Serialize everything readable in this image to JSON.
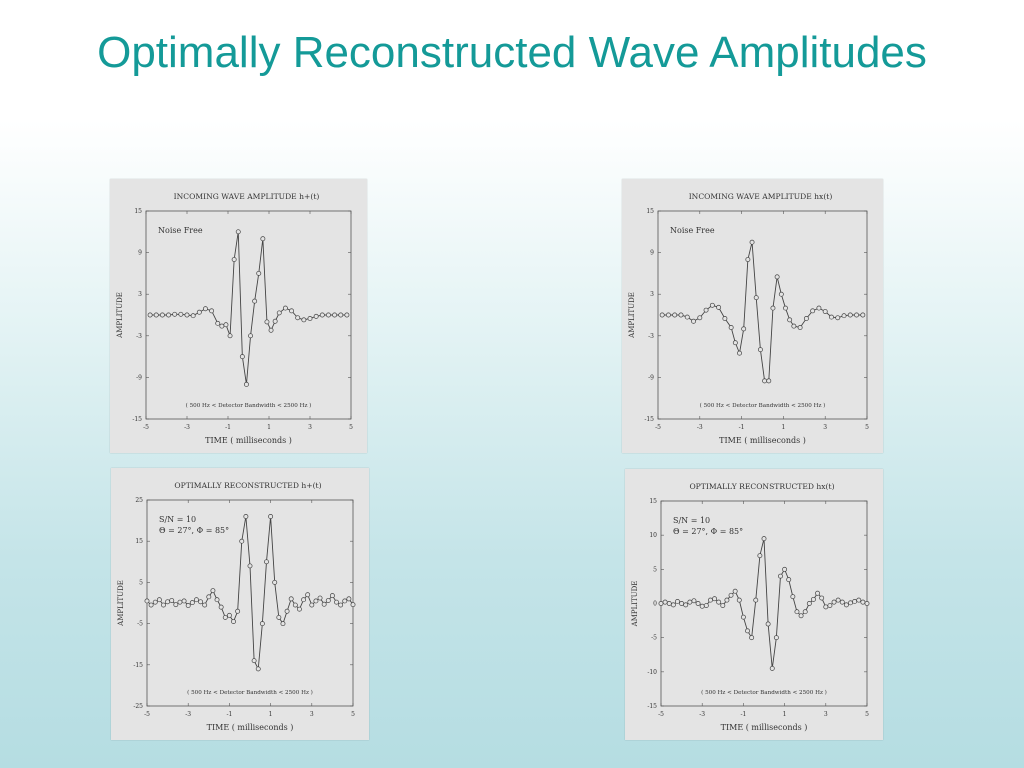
{
  "slide": {
    "title": "Optimally Reconstructed Wave Amplitudes"
  },
  "chart_data": [
    {
      "type": "line",
      "title": "INCOMING WAVE AMPLITUDE h+(t)",
      "annotation": "Noise Free",
      "note": "( 500 Hz < Detector Bandwidth < 2500 Hz )",
      "xlabel": "TIME ( milliseconds )",
      "ylabel": "AMPLITUDE",
      "xlim": [
        -5,
        5
      ],
      "ylim": [
        -15,
        15
      ],
      "xticks": [
        "-5",
        "-3",
        "-1",
        "1",
        "3",
        "5"
      ],
      "yticks": [
        "15",
        "9",
        "3",
        "-3",
        "-9",
        "-15"
      ],
      "grid": false,
      "x": [
        -4.8,
        -4.5,
        -4.2,
        -3.9,
        -3.6,
        -3.3,
        -3.0,
        -2.7,
        -2.4,
        -2.1,
        -1.8,
        -1.5,
        -1.3,
        -1.1,
        -0.9,
        -0.7,
        -0.5,
        -0.3,
        -0.1,
        0.1,
        0.3,
        0.5,
        0.7,
        0.9,
        1.1,
        1.3,
        1.5,
        1.8,
        2.1,
        2.4,
        2.7,
        3.0,
        3.3,
        3.6,
        3.9,
        4.2,
        4.5,
        4.8
      ],
      "values": [
        0,
        0,
        0,
        0,
        0.1,
        0.1,
        0,
        -0.1,
        0.4,
        0.9,
        0.6,
        -1.2,
        -1.6,
        -1.4,
        -3.0,
        8.0,
        12.0,
        -6.0,
        -10.0,
        -3.0,
        2.0,
        6.0,
        11.0,
        -1.0,
        -2.2,
        -0.9,
        0.3,
        1.0,
        0.6,
        -0.4,
        -0.7,
        -0.5,
        -0.2,
        0,
        0,
        0,
        0,
        0
      ]
    },
    {
      "type": "line",
      "title": "INCOMING WAVE AMPLITUDE hx(t)",
      "annotation": "Noise Free",
      "note": "( 500 Hz < Detector Bandwidth < 2500 Hz )",
      "xlabel": "TIME ( milliseconds )",
      "ylabel": "AMPLITUDE",
      "xlim": [
        -5,
        5
      ],
      "ylim": [
        -15,
        15
      ],
      "xticks": [
        "-5",
        "-3",
        "-1",
        "1",
        "3",
        "5"
      ],
      "yticks": [
        "15",
        "9",
        "3",
        "-3",
        "-9",
        "-15"
      ],
      "grid": false,
      "x": [
        -4.8,
        -4.5,
        -4.2,
        -3.9,
        -3.6,
        -3.3,
        -3.0,
        -2.7,
        -2.4,
        -2.1,
        -1.8,
        -1.5,
        -1.3,
        -1.1,
        -0.9,
        -0.7,
        -0.5,
        -0.3,
        -0.1,
        0.1,
        0.3,
        0.5,
        0.7,
        0.9,
        1.1,
        1.3,
        1.5,
        1.8,
        2.1,
        2.4,
        2.7,
        3.0,
        3.3,
        3.6,
        3.9,
        4.2,
        4.5,
        4.8
      ],
      "values": [
        0,
        0,
        0,
        0,
        -0.3,
        -0.9,
        -0.4,
        0.7,
        1.4,
        1.1,
        -0.5,
        -1.8,
        -4.0,
        -5.5,
        -2.0,
        8.0,
        10.5,
        2.5,
        -5.0,
        -9.5,
        -9.5,
        1.0,
        5.5,
        3.0,
        1.0,
        -0.7,
        -1.6,
        -1.8,
        -0.5,
        0.6,
        1.0,
        0.5,
        -0.3,
        -0.4,
        -0.1,
        0,
        0,
        0
      ]
    },
    {
      "type": "line",
      "title": "OPTIMALLY RECONSTRUCTED h+(t)",
      "annotation": [
        "S/N = 10",
        "Θ = 27°, Φ = 85°"
      ],
      "note": "( 500 Hz < Detector Bandwidth < 2500 Hz )",
      "xlabel": "TIME ( milliseconds )",
      "ylabel": "AMPLITUDE",
      "xlim": [
        -5,
        5
      ],
      "ylim": [
        -25,
        25
      ],
      "xticks": [
        "-5",
        "-3",
        "-1",
        "1",
        "3",
        "5"
      ],
      "yticks": [
        "25",
        "15",
        "5",
        "-5",
        "-15",
        "-25"
      ],
      "grid": false,
      "x": [
        -5.0,
        -4.8,
        -4.6,
        -4.4,
        -4.2,
        -4.0,
        -3.8,
        -3.6,
        -3.4,
        -3.2,
        -3.0,
        -2.8,
        -2.6,
        -2.4,
        -2.2,
        -2.0,
        -1.8,
        -1.6,
        -1.4,
        -1.2,
        -1.0,
        -0.8,
        -0.6,
        -0.4,
        -0.2,
        0.0,
        0.2,
        0.4,
        0.6,
        0.8,
        1.0,
        1.2,
        1.4,
        1.6,
        1.8,
        2.0,
        2.2,
        2.4,
        2.6,
        2.8,
        3.0,
        3.2,
        3.4,
        3.6,
        3.8,
        4.0,
        4.2,
        4.4,
        4.6,
        4.8,
        5.0
      ],
      "values": [
        0.5,
        -0.5,
        0.2,
        0.8,
        -0.5,
        0.3,
        0.6,
        -0.4,
        0.2,
        0.5,
        -0.6,
        0.1,
        0.8,
        0.3,
        -0.5,
        1.5,
        3.0,
        0.8,
        -1.0,
        -3.5,
        -3.0,
        -4.5,
        -2.0,
        15.0,
        21.0,
        9.0,
        -14.0,
        -16.0,
        -5.0,
        10.0,
        21.0,
        5.0,
        -3.5,
        -5.0,
        -2.0,
        1.0,
        -0.5,
        -1.5,
        0.8,
        2.0,
        -0.5,
        0.5,
        1.2,
        -0.3,
        0.6,
        1.8,
        0.2,
        -0.5,
        0.5,
        1.0,
        -0.4
      ]
    },
    {
      "type": "line",
      "title": "OPTIMALLY RECONSTRUCTED hx(t)",
      "annotation": [
        "S/N = 10",
        "Θ = 27°, Φ = 85°"
      ],
      "note": "( 500 Hz < Detector Bandwidth < 2500 Hz )",
      "xlabel": "TIME ( milliseconds )",
      "ylabel": "AMPLITUDE",
      "xlim": [
        -5,
        5
      ],
      "ylim": [
        -15,
        15
      ],
      "xticks": [
        "-5",
        "-3",
        "-1",
        "1",
        "3",
        "5"
      ],
      "yticks": [
        "15",
        "10",
        "5",
        "0",
        "-5",
        "-10",
        "-15"
      ],
      "grid": false,
      "x": [
        -5.0,
        -4.8,
        -4.6,
        -4.4,
        -4.2,
        -4.0,
        -3.8,
        -3.6,
        -3.4,
        -3.2,
        -3.0,
        -2.8,
        -2.6,
        -2.4,
        -2.2,
        -2.0,
        -1.8,
        -1.6,
        -1.4,
        -1.2,
        -1.0,
        -0.8,
        -0.6,
        -0.4,
        -0.2,
        0.0,
        0.2,
        0.4,
        0.6,
        0.8,
        1.0,
        1.2,
        1.4,
        1.6,
        1.8,
        2.0,
        2.2,
        2.4,
        2.6,
        2.8,
        3.0,
        3.2,
        3.4,
        3.6,
        3.8,
        4.0,
        4.2,
        4.4,
        4.6,
        4.8,
        5.0
      ],
      "values": [
        0,
        0.2,
        0,
        -0.2,
        0.3,
        0,
        -0.2,
        0.2,
        0.4,
        0,
        -0.4,
        -0.3,
        0.5,
        0.7,
        0.2,
        -0.3,
        0.5,
        1.2,
        1.8,
        0.5,
        -2.0,
        -4.0,
        -5.0,
        0.5,
        7.0,
        9.5,
        -3.0,
        -9.5,
        -5.0,
        4.0,
        5.0,
        3.5,
        1.0,
        -1.2,
        -1.8,
        -1.2,
        0,
        0.6,
        1.5,
        0.8,
        -0.5,
        -0.3,
        0.2,
        0.5,
        0.2,
        -0.2,
        0.1,
        0.3,
        0.5,
        0.2,
        0
      ]
    }
  ]
}
